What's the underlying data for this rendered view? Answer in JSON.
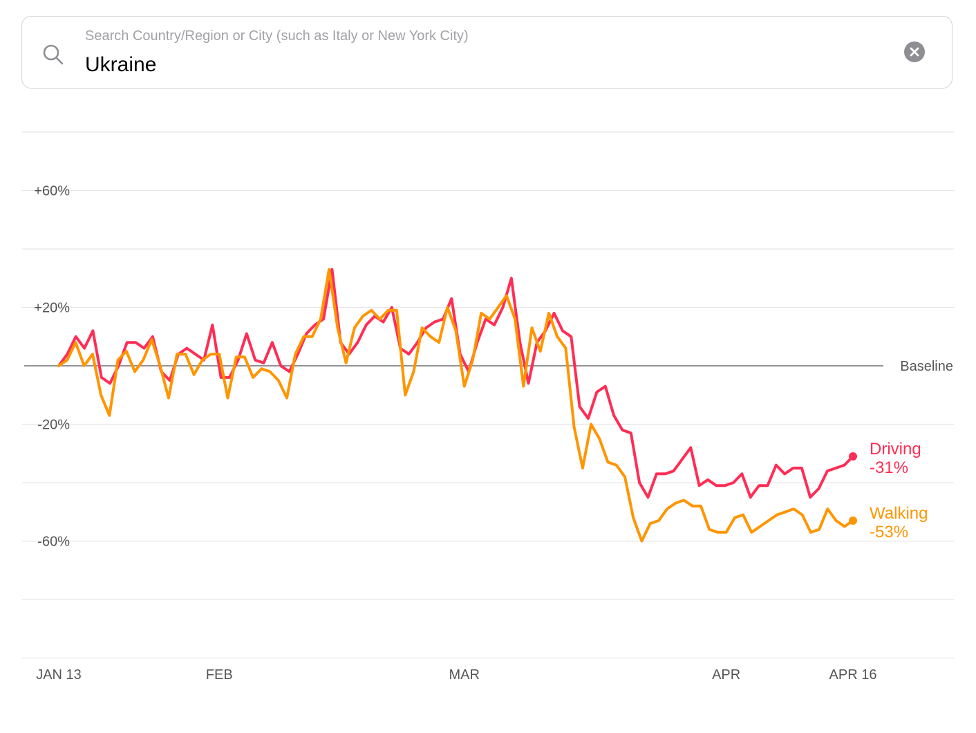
{
  "search": {
    "placeholder": "Search Country/Region or City (such as Italy or New York City)",
    "value": "Ukraine",
    "search_icon": "search-icon",
    "clear_icon": "clear-icon"
  },
  "chart_data": {
    "type": "line",
    "ylim": [
      -100,
      80
    ],
    "y_ticks": [
      {
        "value": 60,
        "label": "+60%"
      },
      {
        "value": 20,
        "label": "+20%"
      },
      {
        "value": -20,
        "label": "-20%"
      },
      {
        "value": -60,
        "label": "-60%"
      }
    ],
    "gridlines": [
      80,
      60,
      40,
      20,
      -20,
      -40,
      -60,
      -80,
      -100
    ],
    "x_ticks": [
      {
        "date": "2020-01-13",
        "label": "JAN 13"
      },
      {
        "date": "2020-02-01",
        "label": "FEB"
      },
      {
        "date": "2020-03-01",
        "label": "MAR"
      },
      {
        "date": "2020-04-01",
        "label": "APR"
      },
      {
        "date": "2020-04-16",
        "label": "APR 16"
      }
    ],
    "baseline": {
      "value": 0,
      "label": "Baseline"
    },
    "x_start": "2020-01-13",
    "x_end": "2020-04-16",
    "series": [
      {
        "name": "Driving",
        "end_label": "-31%",
        "color": "#ff2d55",
        "values": [
          0,
          4,
          10,
          6,
          12,
          -4,
          -6,
          0,
          8,
          8,
          6,
          10,
          -2,
          -5,
          4,
          6,
          4,
          2,
          14,
          -4,
          -4,
          2,
          11,
          2,
          1,
          8,
          0,
          -2,
          4,
          11,
          14,
          16,
          33,
          8,
          4,
          8,
          14,
          17,
          15,
          20,
          6,
          4,
          8,
          13,
          15,
          16,
          23,
          4,
          -2,
          8,
          16,
          14,
          20,
          30,
          8,
          -6,
          8,
          12,
          18,
          12,
          10,
          -14,
          -18,
          -9,
          -7,
          -17,
          -22,
          -23,
          -40,
          -45,
          -37,
          -37,
          -36,
          -32,
          -28,
          -41,
          -39,
          -41,
          -41,
          -40,
          -37,
          -45,
          -41,
          -41,
          -34,
          -37,
          -35,
          -35,
          -45,
          -42,
          -36,
          -35,
          -34,
          -31
        ]
      },
      {
        "name": "Walking",
        "end_label": "-53%",
        "color": "#ff9500",
        "values": [
          0,
          2,
          8,
          0,
          4,
          -10,
          -17,
          2,
          5,
          -2,
          2,
          9,
          0,
          -11,
          4,
          4,
          -3,
          2,
          4,
          4,
          -11,
          3,
          3,
          -4,
          -1,
          -2,
          -5,
          -11,
          4,
          10,
          10,
          16,
          33,
          13,
          1,
          13,
          17,
          19,
          16,
          19,
          19,
          -10,
          -2,
          13,
          10,
          8,
          20,
          12,
          -7,
          2,
          18,
          16,
          20,
          24,
          16,
          -7,
          13,
          5,
          18,
          10,
          6,
          -21,
          -35,
          -20,
          -25,
          -33,
          -34,
          -38,
          -52,
          -60,
          -54,
          -53,
          -49,
          -47,
          -46,
          -48,
          -48,
          -56,
          -57,
          -57,
          -52,
          -51,
          -57,
          -55,
          -53,
          -51,
          -50,
          -49,
          -51,
          -57,
          -56,
          -49,
          -53,
          -55,
          -53
        ]
      }
    ]
  }
}
